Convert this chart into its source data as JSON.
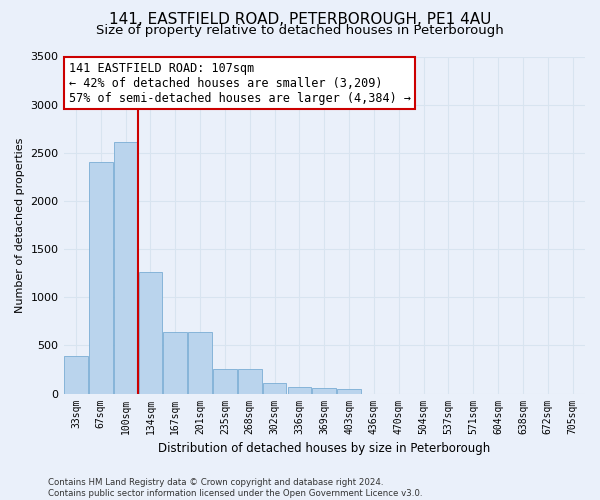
{
  "title_line1": "141, EASTFIELD ROAD, PETERBOROUGH, PE1 4AU",
  "title_line2": "Size of property relative to detached houses in Peterborough",
  "xlabel": "Distribution of detached houses by size in Peterborough",
  "ylabel": "Number of detached properties",
  "footnote": "Contains HM Land Registry data © Crown copyright and database right 2024.\nContains public sector information licensed under the Open Government Licence v3.0.",
  "categories": [
    "33sqm",
    "67sqm",
    "100sqm",
    "134sqm",
    "167sqm",
    "201sqm",
    "235sqm",
    "268sqm",
    "302sqm",
    "336sqm",
    "369sqm",
    "403sqm",
    "436sqm",
    "470sqm",
    "504sqm",
    "537sqm",
    "571sqm",
    "604sqm",
    "638sqm",
    "672sqm",
    "705sqm"
  ],
  "values": [
    390,
    2400,
    2610,
    1260,
    640,
    640,
    260,
    260,
    105,
    65,
    55,
    50,
    0,
    0,
    0,
    0,
    0,
    0,
    0,
    0,
    0
  ],
  "bar_color": "#bad4ed",
  "bar_edge_color": "#7aadd4",
  "vline_color": "#cc0000",
  "annotation_text": "141 EASTFIELD ROAD: 107sqm\n← 42% of detached houses are smaller (3,209)\n57% of semi-detached houses are larger (4,384) →",
  "annotation_box_color": "#ffffff",
  "annotation_box_edge": "#cc0000",
  "ylim": [
    0,
    3500
  ],
  "yticks": [
    0,
    500,
    1000,
    1500,
    2000,
    2500,
    3000,
    3500
  ],
  "bg_color": "#eaf0fa",
  "grid_color": "#d8e4f0",
  "title1_fontsize": 11,
  "title2_fontsize": 9.5
}
